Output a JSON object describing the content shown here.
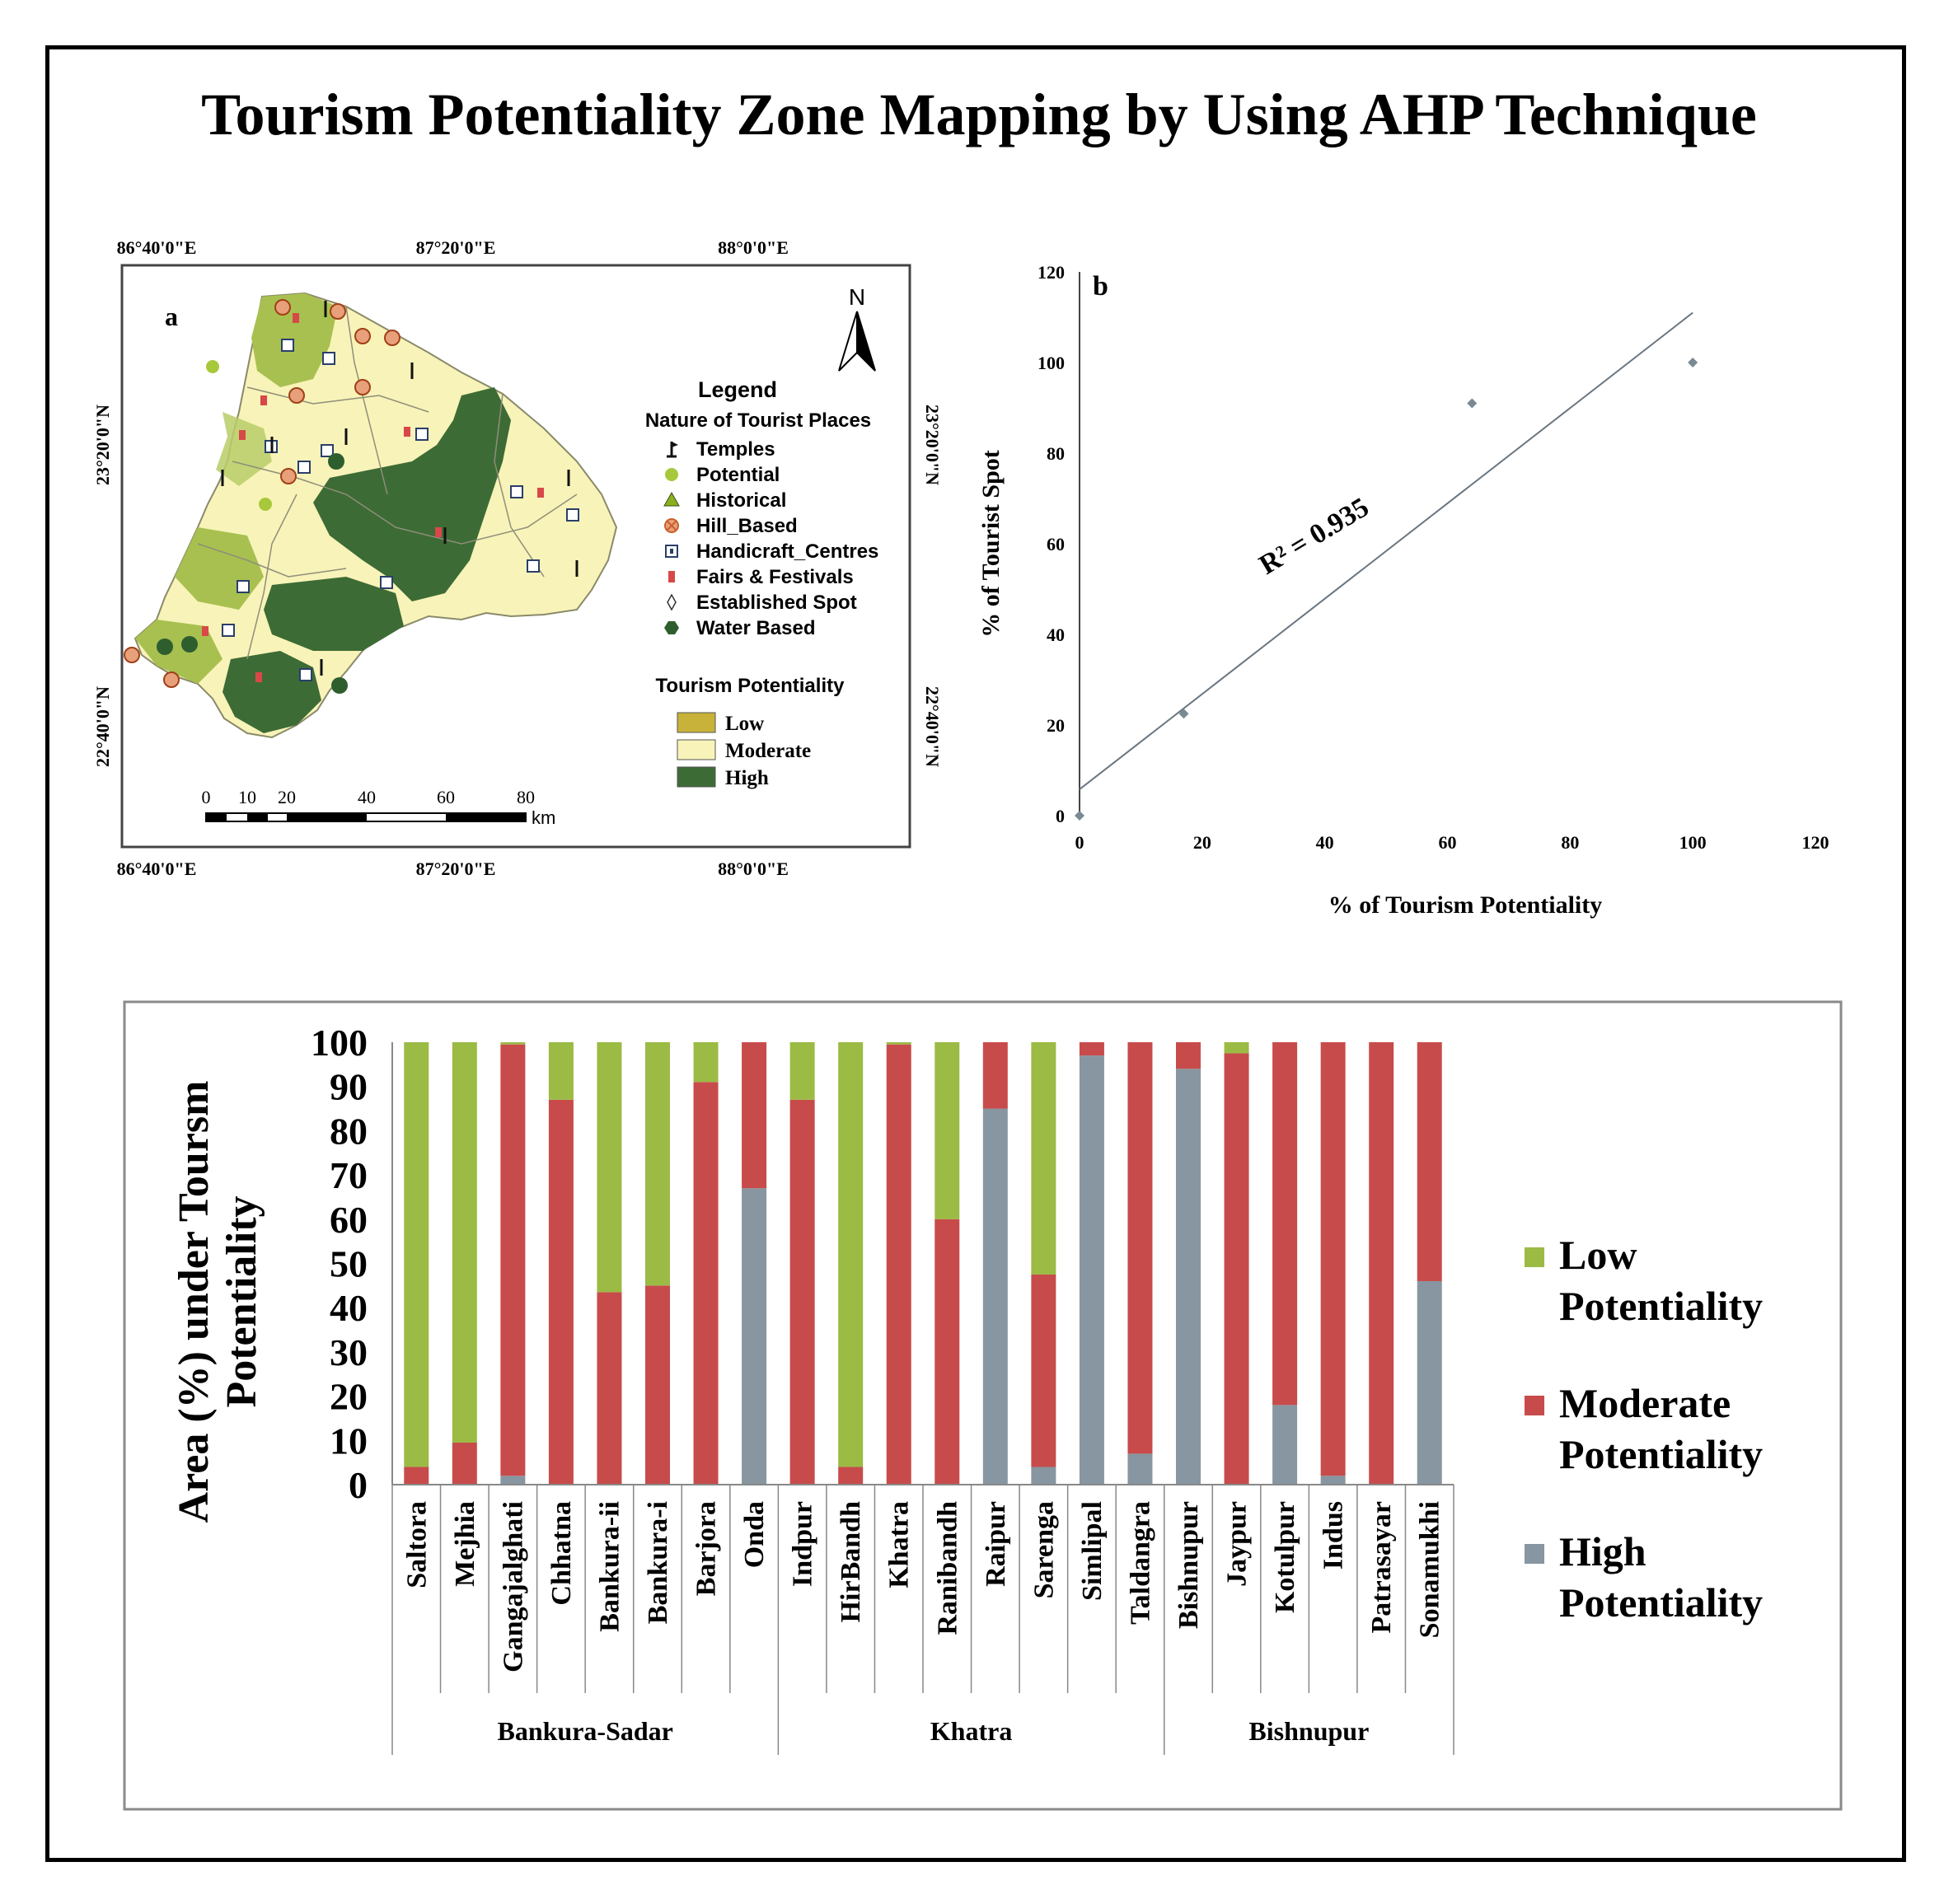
{
  "title": "Tourism Potentiality Zone Mapping by Using  AHP Technique",
  "map": {
    "panel_label": "a",
    "north_label": "N",
    "top_lon_ticks": [
      "86°40'0\"E",
      "87°20'0\"E",
      "88°0'0\"E"
    ],
    "bottom_lon_ticks": [
      "86°40'0\"E",
      "87°20'0\"E",
      "88°0'0\"E"
    ],
    "lat_ticks": [
      "23°20'0\"N",
      "22°40'0\"N"
    ],
    "legend_title": "Legend",
    "legend_sub1": "Nature of Tourist Places",
    "legend_items": [
      {
        "label": "Temples",
        "icon": "temple-flag-icon",
        "color": "#111111"
      },
      {
        "label": "Potential",
        "icon": "potential-circle-icon",
        "color": "#a8c83c"
      },
      {
        "label": "Historical",
        "icon": "historical-triangle-icon",
        "color": "#8ab020"
      },
      {
        "label": "Hill_Based",
        "icon": "hill-crossed-circle-icon",
        "color": "#c8602a"
      },
      {
        "label": "Handicraft_Centres",
        "icon": "handicraft-square-icon",
        "color": "#2a3f6a"
      },
      {
        "label": "Fairs & Festivals",
        "icon": "fair-marker-icon",
        "color": "#d84848"
      },
      {
        "label": "Established Spot",
        "icon": "established-diamond-icon",
        "color": "#333333"
      },
      {
        "label": "Water Based",
        "icon": "water-hexagon-icon",
        "color": "#2e5e2e"
      }
    ],
    "legend_sub2": "Tourism Potentiality",
    "zones": [
      {
        "label": "Low",
        "color": "#c8b23a"
      },
      {
        "label": "Moderate",
        "color": "#f8f3b8"
      },
      {
        "label": "High",
        "color": "#3d6b35"
      }
    ],
    "scale_labels": [
      "0",
      "10",
      "20",
      "40",
      "60",
      "80"
    ],
    "scale_unit": "km"
  },
  "chart_data": [
    {
      "type": "scatter",
      "panel_label": "b",
      "xlabel": "% of Tourism Potentiality",
      "ylabel": "% of Tourist Spot",
      "xlim": [
        0,
        120
      ],
      "ylim": [
        0,
        120
      ],
      "xticks": [
        0,
        20,
        40,
        60,
        80,
        100,
        120
      ],
      "yticks": [
        0,
        20,
        40,
        60,
        80,
        100,
        120
      ],
      "points": [
        {
          "x": 0,
          "y": 0
        },
        {
          "x": 17,
          "y": 22.5
        },
        {
          "x": 64,
          "y": 91
        },
        {
          "x": 100,
          "y": 100
        }
      ],
      "trendline": {
        "x0": 0,
        "y0": 5.8,
        "x1": 100,
        "y1": 111
      },
      "annotation": "R² = 0.935",
      "grid": false,
      "point_color": "#7a8a94",
      "line_color": "#6a7680"
    },
    {
      "type": "bar",
      "stacked": true,
      "ylabel_line1": "Area (%) under Toursm",
      "ylabel_line2": "Potentiality",
      "ylim": [
        0,
        100
      ],
      "yticks": [
        0,
        10,
        20,
        30,
        40,
        50,
        60,
        70,
        80,
        90,
        100
      ],
      "categories": [
        "Saltora",
        "Mejhia",
        "Gangajalghati",
        "Chhatna",
        "Bankura-ii",
        "Bankura-i",
        "Barjora",
        "Onda",
        "Indpur",
        "HirBandh",
        "Khatra",
        "Ranibandh",
        "Raipur",
        "Sarenga",
        "Simlipal",
        "Taldangra",
        "Bishnupur",
        "Jaypur",
        "Kotulpur",
        "Indus",
        "Patrasayar",
        "Sonamukhi"
      ],
      "groups": [
        {
          "label": "Bankura-Sadar",
          "start": 0,
          "end": 7
        },
        {
          "label": "Khatra",
          "start": 8,
          "end": 15
        },
        {
          "label": "Bishnupur",
          "start": 16,
          "end": 21
        }
      ],
      "series": [
        {
          "name": "High Potentiality",
          "legend_line1": "High",
          "legend_line2": "Potentiality",
          "color": "#8796a0",
          "values": [
            0,
            0,
            2,
            0,
            0,
            0,
            0,
            67,
            0,
            0,
            0,
            0,
            85,
            4,
            97,
            7,
            94,
            0,
            18,
            2,
            0,
            46
          ]
        },
        {
          "name": "Moderate Potentiality",
          "legend_line1": "Moderate",
          "legend_line2": "Potentiality",
          "color": "#c84b4b",
          "values": [
            4,
            9.5,
            97.5,
            87,
            43.5,
            45,
            91,
            33,
            87,
            4,
            99.5,
            60,
            15,
            43.5,
            3,
            93,
            6,
            97.5,
            82,
            98,
            100,
            54
          ]
        },
        {
          "name": "Low Potentiality",
          "legend_line1": "Low",
          "legend_line2": "Potentiality",
          "color": "#9bbb45",
          "values": [
            96,
            90.5,
            0.5,
            13,
            56.5,
            55,
            9,
            0,
            13,
            96,
            0.5,
            40,
            0,
            52.5,
            0,
            0,
            0,
            2.5,
            0,
            0,
            0,
            0
          ]
        }
      ],
      "legend_order": [
        2,
        1,
        0
      ]
    }
  ]
}
